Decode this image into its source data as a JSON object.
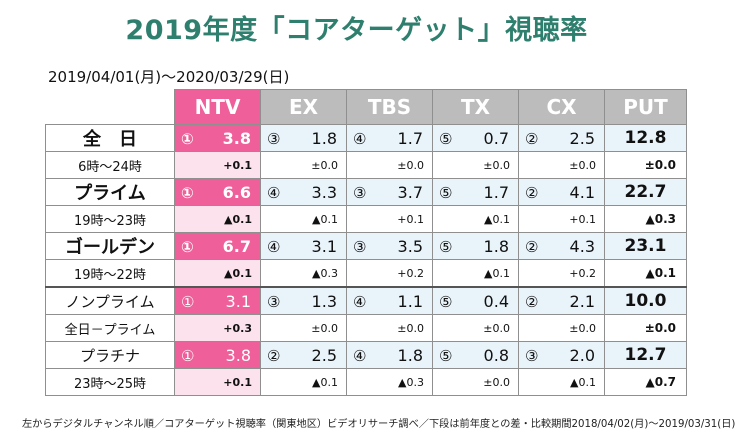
{
  "title": "2019年度「コアターゲット」視聴率",
  "period": "2019/04/01(月)～2020/03/29(日)",
  "headers": [
    "NTV",
    "EX",
    "TBS",
    "TX",
    "CX",
    "PUT"
  ],
  "rows": [
    {
      "main": {
        "label": "全　日",
        "cells": [
          {
            "rank": "①",
            "value": "3.8"
          },
          {
            "rank": "③",
            "value": "1.8"
          },
          {
            "rank": "④",
            "value": "1.7"
          },
          {
            "rank": "⑤",
            "value": "0.7"
          },
          {
            "rank": "②",
            "value": "2.5"
          }
        ],
        "put": "12.8"
      },
      "sub": {
        "label": "6時～24時",
        "cells": [
          "+0.1",
          "±0.0",
          "±0.0",
          "±0.0",
          "±0.0"
        ],
        "put": "±0.0"
      }
    },
    {
      "main": {
        "label": "プライム",
        "cells": [
          {
            "rank": "①",
            "value": "6.6"
          },
          {
            "rank": "④",
            "value": "3.3"
          },
          {
            "rank": "③",
            "value": "3.7"
          },
          {
            "rank": "⑤",
            "value": "1.7"
          },
          {
            "rank": "②",
            "value": "4.1"
          }
        ],
        "put": "22.7"
      },
      "sub": {
        "label": "19時～23時",
        "cells": [
          "▲0.1",
          "▲0.1",
          "+0.1",
          "▲0.1",
          "+0.1"
        ],
        "put": "▲0.3"
      }
    },
    {
      "main": {
        "label": "ゴールデン",
        "cells": [
          {
            "rank": "①",
            "value": "6.7"
          },
          {
            "rank": "④",
            "value": "3.1"
          },
          {
            "rank": "③",
            "value": "3.5"
          },
          {
            "rank": "⑤",
            "value": "1.8"
          },
          {
            "rank": "②",
            "value": "4.3"
          }
        ],
        "put": "23.1"
      },
      "sub": {
        "label": "19時～22時",
        "cells": [
          "▲0.1",
          "▲0.3",
          "+0.2",
          "▲0.1",
          "+0.2"
        ],
        "put": "▲0.1"
      }
    },
    {
      "main": {
        "label": "ノンプライム",
        "cells": [
          {
            "rank": "①",
            "value": "3.1"
          },
          {
            "rank": "③",
            "value": "1.3"
          },
          {
            "rank": "④",
            "value": "1.1"
          },
          {
            "rank": "⑤",
            "value": "0.4"
          },
          {
            "rank": "②",
            "value": "2.1"
          }
        ],
        "put": "10.0"
      },
      "sub": {
        "label": "全日－プライム",
        "cells": [
          "+0.3",
          "±0.0",
          "±0.0",
          "±0.0",
          "±0.0"
        ],
        "put": "±0.0"
      }
    },
    {
      "main": {
        "label": "プラチナ",
        "cells": [
          {
            "rank": "①",
            "value": "3.8"
          },
          {
            "rank": "②",
            "value": "2.5"
          },
          {
            "rank": "④",
            "value": "1.8"
          },
          {
            "rank": "⑤",
            "value": "0.8"
          },
          {
            "rank": "③",
            "value": "2.0"
          }
        ],
        "put": "12.7"
      },
      "sub": {
        "label": "23時～25時",
        "cells": [
          "+0.1",
          "▲0.1",
          "▲0.3",
          "±0.0",
          "▲0.1"
        ],
        "put": "▲0.7"
      }
    }
  ],
  "footnote": "左からデジタルチャンネル順／コアターゲット視聴率（関東地区）ビデオリサーチ調べ／下段は前年度との差・比較期間2018/04/02(月)～2019/03/31(日)",
  "colors": {
    "title": "#2f7f6e",
    "ntv_accent": "#ef5f99",
    "ntv_light": "#fbe2ec",
    "header_gray": "#bcbcbc",
    "row_blue": "#e8f3fa"
  }
}
